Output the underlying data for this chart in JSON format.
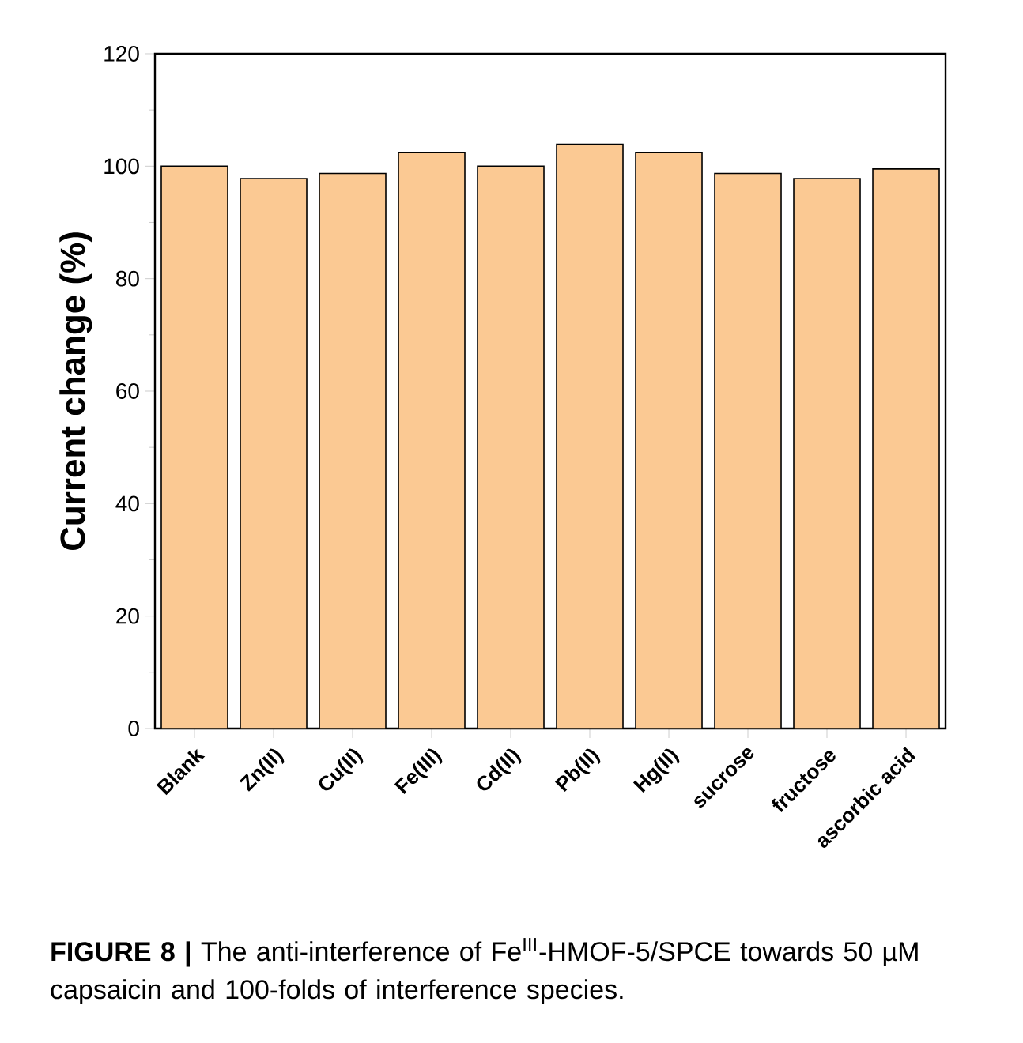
{
  "chart_data": {
    "type": "bar",
    "categories": [
      "Blank",
      "Zn(II)",
      "Cu(II)",
      "Fe(III)",
      "Cd(II)",
      "Pb(II)",
      "Hg(II)",
      "sucrose",
      "fructose",
      "ascorbic acid"
    ],
    "values": [
      100,
      97.8,
      98.7,
      102.4,
      100,
      103.9,
      102.4,
      98.7,
      97.8,
      99.5
    ],
    "color": "#fbc993",
    "ylabel": "Current change (%)",
    "ylim": [
      0,
      120
    ],
    "yticks": [
      0,
      20,
      40,
      60,
      80,
      100,
      120
    ],
    "annotations": [
      "**FIGURE 8 |** The anti-interference of Fe$^{III}$-HMOF-5/SPCE towards 50 µM capsaicin and 100-folds of interference species."
    ]
  }
}
